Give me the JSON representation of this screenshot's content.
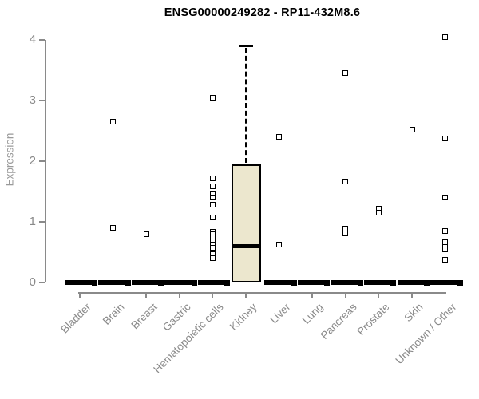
{
  "chart_data": {
    "type": "boxplot",
    "title": "ENSG00000249282 - RP11-432M8.6",
    "ylabel": "Expression",
    "xlabel": "",
    "ylim": [
      0,
      4
    ],
    "yticks": [
      0,
      1,
      2,
      3,
      4
    ],
    "grid": false,
    "legend": "none",
    "categories": [
      "Bladder",
      "Brain",
      "Breast",
      "Gastric",
      "Hematopoietic cells",
      "Kidney",
      "Liver",
      "Lung",
      "Pancreas",
      "Prostate",
      "Skin",
      "Unknown / Other"
    ],
    "boxes": [
      {
        "category": "Bladder",
        "q1": 0,
        "median": 0,
        "q3": 0,
        "whisker_low": 0,
        "whisker_high": 0,
        "outliers": []
      },
      {
        "category": "Brain",
        "q1": 0,
        "median": 0,
        "q3": 0,
        "whisker_low": 0,
        "whisker_high": 0,
        "outliers": [
          2.65,
          0.9
        ]
      },
      {
        "category": "Breast",
        "q1": 0,
        "median": 0,
        "q3": 0,
        "whisker_low": 0,
        "whisker_high": 0,
        "outliers": [
          0.8
        ]
      },
      {
        "category": "Gastric",
        "q1": 0,
        "median": 0,
        "q3": 0,
        "whisker_low": 0,
        "whisker_high": 0,
        "outliers": []
      },
      {
        "category": "Hematopoietic cells",
        "q1": 0,
        "median": 0,
        "q3": 0,
        "whisker_low": 0,
        "whisker_high": 0,
        "outliers": [
          3.05,
          1.72,
          1.58,
          1.47,
          1.4,
          1.28,
          1.07,
          0.84,
          0.79,
          0.74,
          0.68,
          0.62,
          0.57,
          0.47,
          0.4
        ]
      },
      {
        "category": "Kidney",
        "q1": 0,
        "median": 0.6,
        "q3": 1.95,
        "whisker_low": 0,
        "whisker_high": 3.9,
        "outliers": []
      },
      {
        "category": "Liver",
        "q1": 0,
        "median": 0,
        "q3": 0,
        "whisker_low": 0,
        "whisker_high": 0,
        "outliers": [
          2.4,
          0.62
        ]
      },
      {
        "category": "Lung",
        "q1": 0,
        "median": 0,
        "q3": 0,
        "whisker_low": 0,
        "whisker_high": 0,
        "outliers": []
      },
      {
        "category": "Pancreas",
        "q1": 0,
        "median": 0,
        "q3": 0,
        "whisker_low": 0,
        "whisker_high": 0,
        "outliers": [
          3.45,
          1.67,
          0.89,
          0.81
        ]
      },
      {
        "category": "Prostate",
        "q1": 0,
        "median": 0,
        "q3": 0,
        "whisker_low": 0,
        "whisker_high": 0,
        "outliers": [
          1.22,
          1.15
        ]
      },
      {
        "category": "Skin",
        "q1": 0,
        "median": 0,
        "q3": 0,
        "whisker_low": 0,
        "whisker_high": 0,
        "outliers": [
          2.52
        ]
      },
      {
        "category": "Unknown / Other",
        "q1": 0,
        "median": 0,
        "q3": 0,
        "whisker_low": 0,
        "whisker_high": 0,
        "outliers": [
          4.05,
          2.37,
          1.4,
          0.85,
          0.67,
          0.59,
          0.54,
          0.38
        ]
      }
    ],
    "colors": {
      "box_fill": "#ECE7CE",
      "box_border": "#000000",
      "median": "#000000",
      "axis": "#8a8a8a",
      "tick_label": "#8a8a8a",
      "title": "#000000",
      "background": "#ffffff"
    }
  }
}
